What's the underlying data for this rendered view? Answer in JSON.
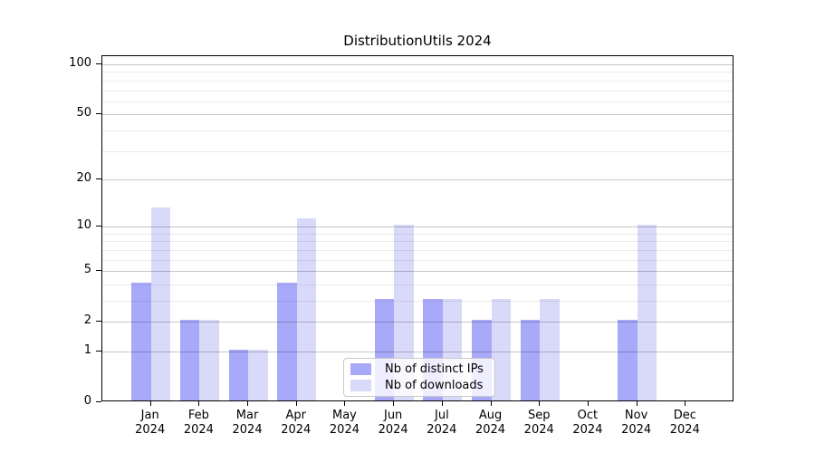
{
  "chart_data": {
    "type": "bar",
    "title": "DistributionUtils 2024",
    "months": [
      "Jan",
      "Feb",
      "Mar",
      "Apr",
      "May",
      "Jun",
      "Jul",
      "Aug",
      "Sep",
      "Oct",
      "Nov",
      "Dec"
    ],
    "year": "2024",
    "categories": [
      "Jan 2024",
      "Feb 2024",
      "Mar 2024",
      "Apr 2024",
      "May 2024",
      "Jun 2024",
      "Jul 2024",
      "Aug 2024",
      "Sep 2024",
      "Oct 2024",
      "Nov 2024",
      "Dec 2024"
    ],
    "series": [
      {
        "name": "Nb of distinct IPs",
        "color": "#a9a9fa",
        "values": [
          4,
          2,
          1,
          4,
          0,
          3,
          3,
          2,
          2,
          0,
          2,
          0
        ]
      },
      {
        "name": "Nb of downloads",
        "color": "#d9d9f9",
        "values": [
          13,
          2,
          1,
          11,
          0,
          10,
          3,
          3,
          3,
          0,
          10,
          0
        ]
      }
    ],
    "xlabel": "",
    "ylabel": "",
    "y_scale": "log10(1+v)",
    "y_ticks": [
      0,
      1,
      2,
      5,
      10,
      20,
      50,
      100
    ],
    "y_minor_gridlines": [
      3,
      4,
      6,
      7,
      8,
      9,
      30,
      40,
      60,
      70,
      80,
      90
    ],
    "ylim": [
      0,
      112
    ],
    "grid": {
      "major_color": "rgba(0,0,0,0.22)",
      "minor_color": "rgba(0,0,0,0.08)",
      "drawn_above_bars": true
    },
    "legend_position": "lower center",
    "background_color": "#ffffff",
    "text_color": "#000000"
  }
}
